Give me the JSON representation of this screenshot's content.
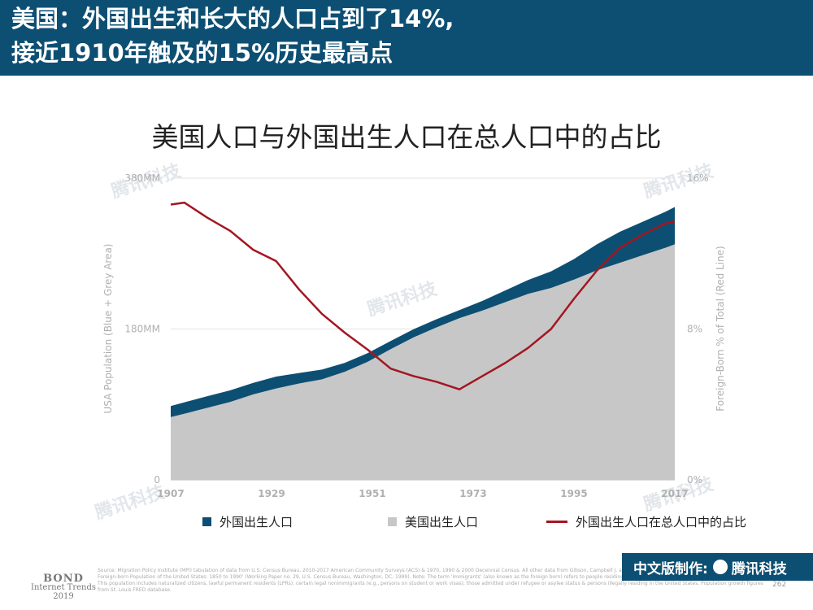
{
  "header": {
    "line1": "美国：外国出生和长大的人口占到了14%,",
    "line2": "接近1910年触及的15%历史最高点"
  },
  "chart_title": "美国人口与外国出生人口在总人口中的占比",
  "chart_data": {
    "type": "area",
    "title": "美国人口与外国出生人口在总人口中的占比",
    "ylabel_left": "USA Population (Blue + Grey Area)",
    "ylabel_right": "Foreign-Born % of Total (Red Line)",
    "x_ticks": [
      "1907",
      "1929",
      "1951",
      "1973",
      "1995",
      "2017"
    ],
    "y_left_ticks": [
      "0",
      "180MM",
      "380MM"
    ],
    "y_right_ticks": [
      "0%",
      "8%",
      "16%"
    ],
    "xlim": [
      1907,
      2017
    ],
    "ylim_left": [
      0,
      360
    ],
    "ylim_right": [
      0,
      16
    ],
    "grid": true,
    "legend_position": "bottom",
    "x": [
      1907,
      1910,
      1915,
      1920,
      1925,
      1930,
      1935,
      1940,
      1945,
      1950,
      1955,
      1960,
      1965,
      1970,
      1975,
      1980,
      1985,
      1990,
      1995,
      2000,
      2005,
      2010,
      2015,
      2017
    ],
    "series": [
      {
        "name": "外国出生人口",
        "color": "#0d4f73",
        "values": [
          13,
          13.5,
          13.8,
          13.9,
          13.7,
          14.2,
          12.5,
          11.6,
          10.6,
          10.3,
          9.7,
          9.7,
          9.6,
          9.6,
          11.5,
          14,
          16.5,
          19.8,
          24.5,
          31,
          37,
          40,
          43,
          44.5
        ]
      },
      {
        "name": "美国出生人口",
        "color": "#c7c7c7",
        "values": [
          75,
          79,
          86,
          93,
          102,
          109,
          115,
          120,
          129,
          141,
          156,
          170,
          182,
          193,
          202,
          212,
          222,
          229,
          239,
          250,
          259,
          268,
          277,
          281
        ]
      },
      {
        "name": "外国出生人口在总人口中的占比",
        "color": "#a31621",
        "axis": "right",
        "values": [
          14.6,
          14.7,
          13.9,
          13.2,
          12.2,
          11.6,
          10.1,
          8.8,
          7.8,
          6.9,
          5.9,
          5.5,
          5.2,
          4.8,
          5.5,
          6.2,
          7.0,
          8.0,
          9.6,
          11.1,
          12.3,
          13.0,
          13.6,
          13.7
        ]
      }
    ]
  },
  "legend": [
    {
      "label": "外国出生人口",
      "color": "#0d4f73",
      "type": "box"
    },
    {
      "label": "美国出生人口",
      "color": "#c7c7c7",
      "type": "box"
    },
    {
      "label": "外国出生人口在总人口中的占比",
      "color": "#a31621",
      "type": "line"
    }
  ],
  "footer": {
    "bond_1": "BOND",
    "bond_2": "Internet Trends",
    "bond_3": "2019",
    "source": "Source: Migration Policy Institute (MPI) tabulation of data from U.S. Census Bureau, 2010-2017 American Community Surveys (ACS) & 1970, 1990 & 2000 Decennial Census. All other data from Gibson, Campbell J. and Emily Lennon, 'Historical Census Statistics on the Foreign-born Population of the United States: 1850 to 1990' (Working Paper no. 29, U.S. Census Bureau, Washington, DC, 1999). Note: The term 'immigrants' (also known as the foreign born) refers to people residing in the United States who were not U.S. citizens at birth. This population includes naturalized citizens, lawful permanent residents (LPRs), certain legal nonimmigrants (e.g., persons on student or work visas), those admitted under refugee or asylee status & persons illegally residing in the United States. Population growth figures from St. Louis FRED database.",
    "page_number": "262"
  },
  "credit": {
    "label": "中文版制作:",
    "brand": "腾讯科技"
  },
  "watermark_text": "腾讯科技"
}
